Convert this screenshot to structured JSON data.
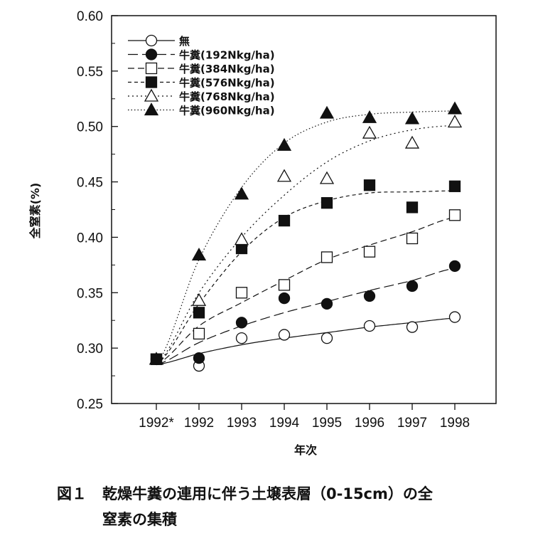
{
  "chart_data": {
    "type": "scatter",
    "xlabel": "年次",
    "ylabel": "全窒素(%)",
    "x": [
      "1992*",
      "1992",
      "1993",
      "1994",
      "1995",
      "1996",
      "1997",
      "1998"
    ],
    "ylim": [
      0.25,
      0.6
    ],
    "yticks": [
      "0.25",
      "0.30",
      "0.35",
      "0.40",
      "0.45",
      "0.50",
      "0.55",
      "0.60"
    ],
    "legend_position": "top-left",
    "series": [
      {
        "name": "無",
        "marker": "circle-open",
        "line": "solid",
        "values": [
          0.29,
          0.284,
          0.309,
          0.312,
          0.309,
          0.32,
          0.319,
          0.328
        ],
        "fit": [
          0.285,
          0.295,
          0.303,
          0.309,
          0.314,
          0.319,
          0.323,
          0.327
        ]
      },
      {
        "name": "牛糞(192Nkg/ha)",
        "marker": "circle-filled",
        "line": "long-dash",
        "values": [
          0.29,
          0.291,
          0.323,
          0.345,
          0.34,
          0.347,
          0.356,
          0.374
        ],
        "fit": [
          0.285,
          0.305,
          0.32,
          0.332,
          0.342,
          0.352,
          0.361,
          0.372
        ]
      },
      {
        "name": "牛糞(384Nkg/ha)",
        "marker": "square-open",
        "line": "dash",
        "values": [
          0.29,
          0.313,
          0.35,
          0.357,
          0.382,
          0.387,
          0.399,
          0.42
        ],
        "fit": [
          0.285,
          0.32,
          0.341,
          0.361,
          0.38,
          0.393,
          0.405,
          0.418
        ]
      },
      {
        "name": "牛糞(576Nkg/ha)",
        "marker": "square-filled",
        "line": "short-dash",
        "values": [
          0.29,
          0.332,
          0.39,
          0.415,
          0.431,
          0.447,
          0.427,
          0.446
        ],
        "fit": [
          0.285,
          0.34,
          0.387,
          0.418,
          0.433,
          0.44,
          0.441,
          0.442
        ]
      },
      {
        "name": "牛糞(768Nkg/ha)",
        "marker": "triangle-open",
        "line": "dot",
        "values": [
          0.29,
          0.343,
          0.398,
          0.455,
          0.453,
          0.494,
          0.485,
          0.504
        ],
        "fit": [
          0.285,
          0.35,
          0.4,
          0.438,
          0.468,
          0.487,
          0.497,
          0.501
        ]
      },
      {
        "name": "牛糞(960Nkg/ha)",
        "marker": "triangle-filled",
        "line": "fine-dot",
        "values": [
          0.29,
          0.384,
          0.439,
          0.483,
          0.512,
          0.508,
          0.507,
          0.516
        ],
        "fit": [
          0.285,
          0.38,
          0.445,
          0.485,
          0.504,
          0.511,
          0.513,
          0.514
        ]
      }
    ]
  },
  "caption": {
    "figure_label": "図１",
    "line1": "乾燥牛糞の連用に伴う土壌表層（0-15cm）の全",
    "line2": "窒素の集積"
  },
  "colors": {
    "ink": "#111111",
    "background": "#ffffff"
  }
}
